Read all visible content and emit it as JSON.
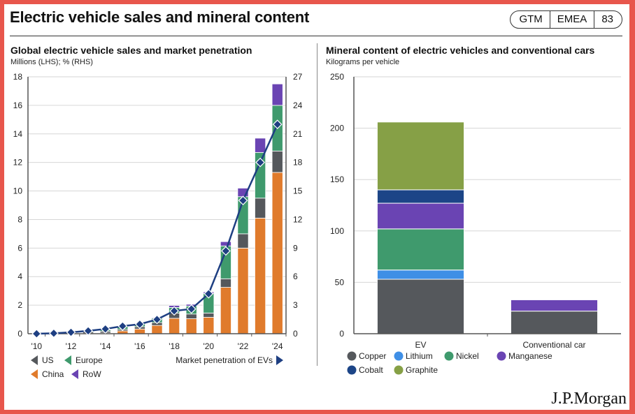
{
  "header": {
    "title": "Electric vehicle sales and mineral content",
    "badge": [
      "GTM",
      "EMEA",
      "83"
    ]
  },
  "footer": {
    "logo": "J.P.Morgan"
  },
  "colors": {
    "us": "#55585c",
    "europe": "#3f9a6d",
    "china": "#e07b2c",
    "row": "#6a44b3",
    "penetration": "#1e3f82",
    "copper": "#55585c",
    "lithium": "#3f8fe6",
    "nickel": "#3f9a6d",
    "manganese": "#6a44b3",
    "cobalt": "#1c4587",
    "graphite": "#86a046"
  },
  "chart_data": [
    {
      "type": "bar",
      "stacked": true,
      "title": "Global electric vehicle sales and market penetration",
      "subtitle": "Millions (LHS); % (RHS)",
      "xlabel": "",
      "ylabel": "Millions",
      "y2label": "%",
      "ylim": [
        0,
        18
      ],
      "yticks": [
        0,
        2,
        4,
        6,
        8,
        10,
        12,
        14,
        16,
        18
      ],
      "y2lim": [
        0,
        27
      ],
      "y2ticks": [
        0,
        3,
        6,
        9,
        12,
        15,
        18,
        21,
        24,
        27
      ],
      "grid": true,
      "x": [
        2010,
        2011,
        2012,
        2013,
        2014,
        2015,
        2016,
        2017,
        2018,
        2019,
        2020,
        2021,
        2022,
        2023,
        2024
      ],
      "xtick_labels": [
        "'10",
        "'12",
        "'14",
        "'16",
        "'18",
        "'20",
        "'22",
        "'24"
      ],
      "series": [
        {
          "name": "China",
          "key": "china",
          "values": [
            0,
            0,
            0.01,
            0.02,
            0.05,
            0.2,
            0.33,
            0.58,
            1.08,
            1.05,
            1.15,
            3.25,
            6.0,
            8.1,
            11.3
          ]
        },
        {
          "name": "US",
          "key": "us",
          "values": [
            0,
            0.01,
            0.05,
            0.1,
            0.12,
            0.11,
            0.16,
            0.2,
            0.36,
            0.33,
            0.3,
            0.6,
            1.0,
            1.4,
            1.5
          ]
        },
        {
          "name": "Europe",
          "key": "europe",
          "values": [
            0,
            0.01,
            0.02,
            0.07,
            0.1,
            0.19,
            0.21,
            0.31,
            0.4,
            0.56,
            1.38,
            2.3,
            2.6,
            3.2,
            3.2
          ]
        },
        {
          "name": "RoW",
          "key": "row",
          "values": [
            0,
            0,
            0.01,
            0.01,
            0.02,
            0.03,
            0.04,
            0.05,
            0.14,
            0.12,
            0.1,
            0.3,
            0.6,
            1.0,
            1.5
          ]
        }
      ],
      "line_series": {
        "name": "Market penetration of EVs",
        "key": "penetration",
        "axis": "right",
        "values": [
          0.0,
          0.05,
          0.15,
          0.3,
          0.5,
          0.8,
          1.0,
          1.5,
          2.4,
          2.6,
          4.2,
          8.7,
          14.0,
          18.0,
          22.0
        ]
      },
      "legend": {
        "placement": "bottom",
        "left_items": [
          "US",
          "Europe",
          "China",
          "RoW"
        ],
        "right_item": "Market penetration of EVs"
      }
    },
    {
      "type": "bar",
      "stacked": true,
      "title": "Mineral content of electric vehicles and conventional cars",
      "subtitle": "Kilograms per vehicle",
      "xlabel": "",
      "ylabel": "Kilograms per vehicle",
      "ylim": [
        0,
        250
      ],
      "yticks": [
        0,
        50,
        100,
        150,
        200,
        250
      ],
      "grid": true,
      "categories": [
        "EV",
        "Conventional car"
      ],
      "series": [
        {
          "name": "Copper",
          "key": "copper",
          "values": [
            53,
            22
          ]
        },
        {
          "name": "Lithium",
          "key": "lithium",
          "values": [
            9,
            0
          ]
        },
        {
          "name": "Nickel",
          "key": "nickel",
          "values": [
            40,
            0
          ]
        },
        {
          "name": "Manganese",
          "key": "manganese",
          "values": [
            25,
            11
          ]
        },
        {
          "name": "Cobalt",
          "key": "cobalt",
          "values": [
            13,
            0
          ]
        },
        {
          "name": "Graphite",
          "key": "graphite",
          "values": [
            66,
            0
          ]
        }
      ],
      "legend": {
        "placement": "bottom",
        "items": [
          "Copper",
          "Lithium",
          "Nickel",
          "Manganese",
          "Cobalt",
          "Graphite"
        ]
      }
    }
  ]
}
